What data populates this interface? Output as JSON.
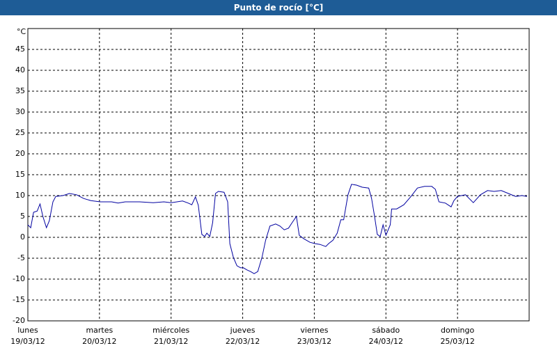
{
  "chart_data": {
    "type": "line",
    "title": "Punto de rocío [°C]",
    "y_label": "°C",
    "x": [
      0,
      0.04,
      0.08,
      0.13,
      0.17,
      0.21,
      0.26,
      0.3,
      0.35,
      0.39,
      0.49,
      0.58,
      0.68,
      0.78,
      0.88,
      1.01,
      1.17,
      1.26,
      1.36,
      1.56,
      1.75,
      1.9,
      2.0,
      2.16,
      2.24,
      2.29,
      2.34,
      2.38,
      2.43,
      2.47,
      2.5,
      2.54,
      2.58,
      2.62,
      2.66,
      2.74,
      2.79,
      2.82,
      2.87,
      2.92,
      2.97,
      3.01,
      3.06,
      3.11,
      3.16,
      3.21,
      3.27,
      3.32,
      3.38,
      3.46,
      3.52,
      3.58,
      3.64,
      3.69,
      3.75,
      3.79,
      3.85,
      3.94,
      4.01,
      4.08,
      4.16,
      4.2,
      4.26,
      4.32,
      4.37,
      4.41,
      4.47,
      4.52,
      4.59,
      4.67,
      4.76,
      4.8,
      4.84,
      4.88,
      4.92,
      4.96,
      5.0,
      5.06,
      5.08,
      5.15,
      5.25,
      5.35,
      5.44,
      5.54,
      5.64,
      5.69,
      5.74,
      5.83,
      5.91,
      5.95,
      6.0,
      6.11,
      6.22,
      6.32,
      6.42,
      6.51,
      6.61,
      6.71,
      6.81,
      6.9,
      6.97
    ],
    "values": [
      3,
      2.3,
      6,
      6.3,
      8,
      5,
      2.3,
      4,
      8.5,
      9.8,
      10,
      10.5,
      10.2,
      9.3,
      8.8,
      8.5,
      8.5,
      8.2,
      8.5,
      8.5,
      8.3,
      8.5,
      8.3,
      8.7,
      8.2,
      7.8,
      9.7,
      7.7,
      0.7,
      0.2,
      1,
      0.2,
      3.5,
      10.5,
      11,
      10.8,
      8.5,
      -1.5,
      -4.8,
      -6.8,
      -7.3,
      -7.3,
      -7.8,
      -8.2,
      -8.7,
      -8.2,
      -4.8,
      -0.7,
      2.7,
      3.2,
      2.7,
      1.8,
      2.2,
      3.5,
      5,
      0.5,
      -0.3,
      -1.2,
      -1.5,
      -1.7,
      -2.2,
      -1.5,
      -0.7,
      1,
      4.2,
      4.2,
      10.2,
      12.7,
      12.5,
      12,
      11.8,
      9.3,
      5.2,
      0.7,
      0.2,
      3,
      0.5,
      3,
      6.8,
      6.8,
      7.8,
      9.8,
      11.8,
      12.2,
      12.2,
      11.5,
      8.5,
      8.2,
      7.3,
      8.8,
      9.8,
      10.2,
      8.3,
      10.2,
      11.2,
      11,
      11.2,
      10.5,
      9.8,
      10,
      9.8
    ],
    "color": "#0000a0",
    "xlim": [
      0,
      7
    ],
    "xticks": [
      {
        "value": 0,
        "label": "lunes",
        "date": "19/03/12"
      },
      {
        "value": 1,
        "label": "martes",
        "date": "20/03/12"
      },
      {
        "value": 2,
        "label": "miércoles",
        "date": "21/03/12"
      },
      {
        "value": 3,
        "label": "jueves",
        "date": "22/03/12"
      },
      {
        "value": 4,
        "label": "viernes",
        "date": "23/03/12"
      },
      {
        "value": 5,
        "label": "sábado",
        "date": "24/03/12"
      },
      {
        "value": 6,
        "label": "domingo",
        "date": "25/03/12"
      }
    ],
    "ylim": [
      -20,
      50
    ],
    "yticks": [
      -20,
      -15,
      -10,
      -5,
      0,
      5,
      10,
      15,
      20,
      25,
      30,
      35,
      40,
      45
    ],
    "grid": true
  }
}
